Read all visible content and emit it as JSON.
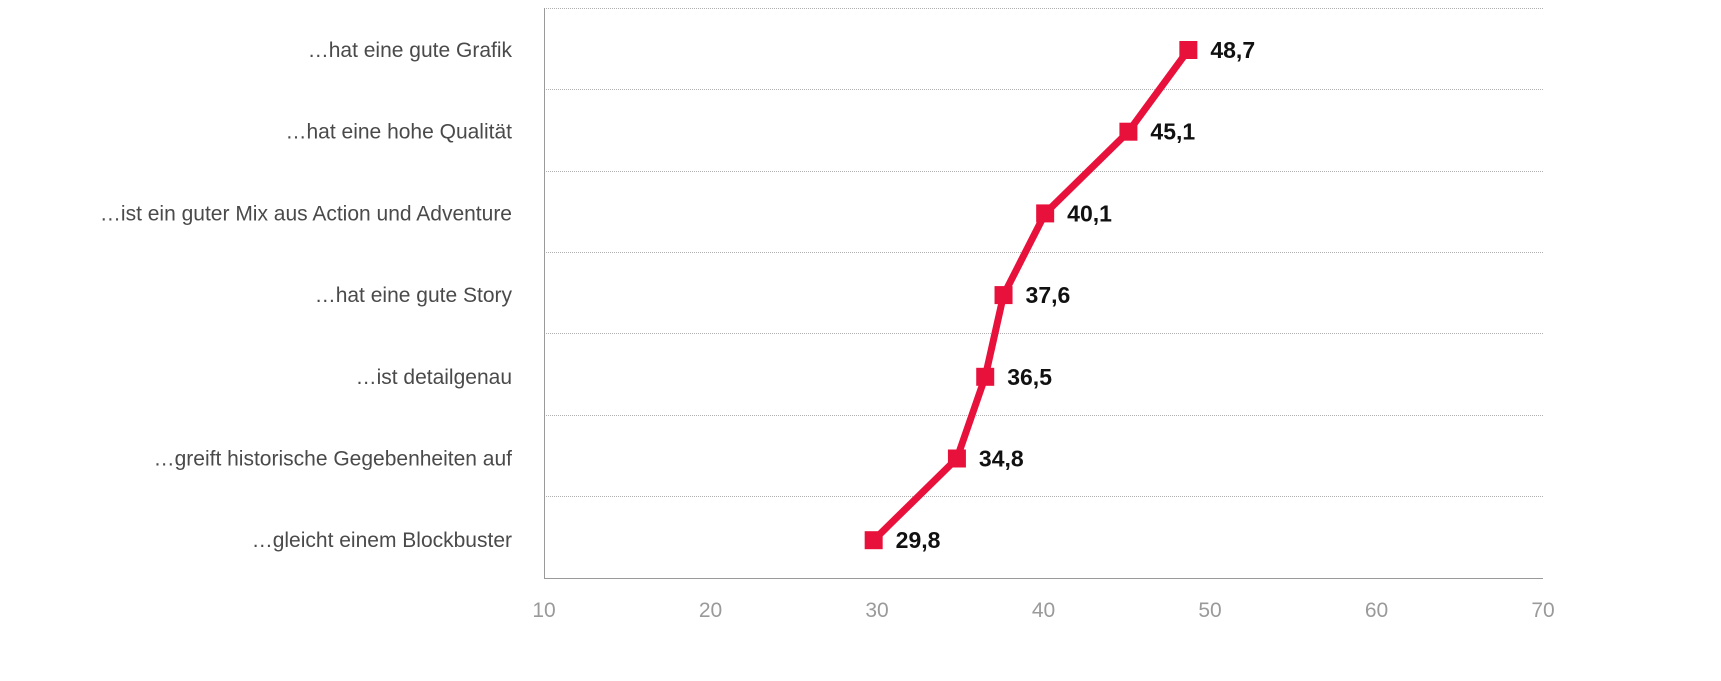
{
  "chart_data": {
    "type": "line",
    "orientation": "horizontal",
    "categories": [
      "…hat eine gute Grafik",
      "…hat eine hohe Qualität",
      "…ist ein guter Mix aus Action und Adventure",
      "…hat eine gute Story",
      "…ist detailgenau",
      "…greift historische Gegebenheiten auf",
      "…gleicht einem Blockbuster"
    ],
    "values": [
      48.7,
      45.1,
      40.1,
      37.6,
      36.5,
      34.8,
      29.8
    ],
    "value_labels": [
      "48,7",
      "45,1",
      "40,1",
      "37,6",
      "36,5",
      "34,8",
      "29,8"
    ],
    "xlim": [
      10,
      70
    ],
    "x_ticks": [
      "10",
      "20",
      "30",
      "40",
      "50",
      "60",
      "70"
    ],
    "title": "",
    "xlabel": "",
    "ylabel": "",
    "grid": "horizontal dotted",
    "legend": "none",
    "colors": {
      "series": "#e8113c",
      "grid": "#b0b0b0",
      "axis": "#9a9a9a",
      "category_text": "#4a4a4a",
      "tick_text": "#9a9a9a",
      "label_text": "#111111"
    },
    "marker": "square"
  }
}
